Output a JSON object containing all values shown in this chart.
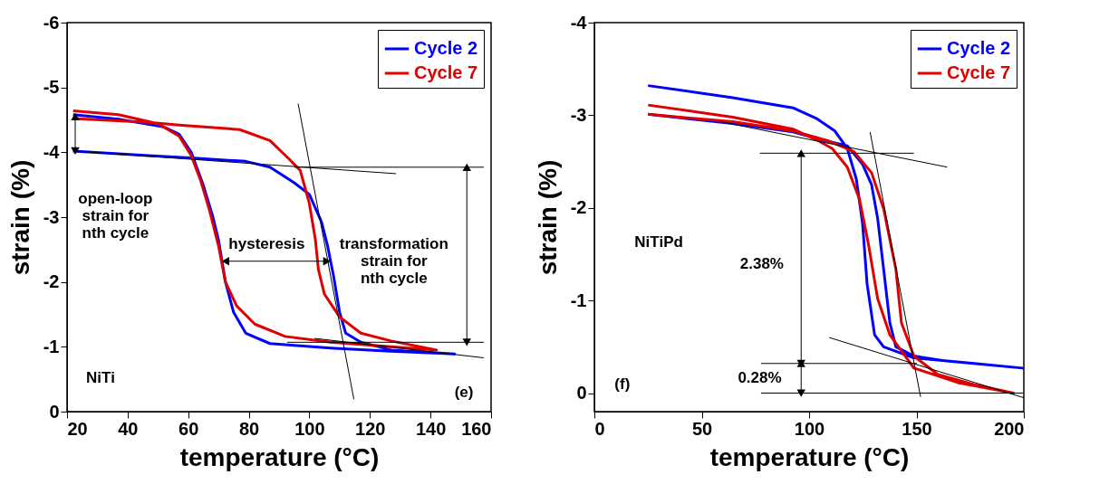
{
  "chart_data": [
    {
      "type": "line",
      "xlabel": "temperature (°C)",
      "ylabel": "strain (%)",
      "xlim": [
        20,
        160
      ],
      "xticks": [
        20,
        40,
        60,
        80,
        100,
        120,
        140,
        160
      ],
      "ylim": [
        0,
        -6
      ],
      "yticks": [
        0,
        -1,
        -2,
        -3,
        -4,
        -5,
        -6
      ],
      "grid": false,
      "legend": "top right",
      "annotations": [
        "open-loop\nstrain for\nnth cycle",
        "hysteresis",
        "transformation\nstrain for\nnth cycle",
        "NiTi",
        "(e)"
      ],
      "series": [
        {
          "name": "Cycle 2",
          "color": "#0000ff",
          "x": [
            22,
            37,
            52,
            57,
            61,
            65,
            68,
            70,
            72.3,
            75,
            79,
            87,
            107,
            127,
            148,
            127,
            117,
            112,
            110,
            108,
            106,
            104,
            100,
            95,
            87,
            79,
            62,
            47,
            22
          ],
          "values": [
            -4.58,
            -4.51,
            -4.39,
            -4.28,
            -4.0,
            -3.49,
            -3.03,
            -2.65,
            -2.0,
            -1.53,
            -1.21,
            -1.05,
            -0.98,
            -0.93,
            -0.89,
            -0.95,
            -1.07,
            -1.21,
            -1.53,
            -2.09,
            -2.56,
            -2.93,
            -3.35,
            -3.53,
            -3.77,
            -3.86,
            -3.91,
            -3.95,
            -4.02
          ]
        },
        {
          "name": "Cycle 7",
          "color": "#e00000",
          "x": [
            22,
            37,
            50,
            57,
            61,
            64,
            67,
            70,
            72.3,
            76,
            82,
            92,
            107,
            127,
            142,
            127,
            117,
            110,
            105,
            103,
            102,
            100,
            97,
            93,
            87,
            77,
            57,
            47,
            22
          ],
          "values": [
            -4.64,
            -4.58,
            -4.44,
            -4.25,
            -3.95,
            -3.58,
            -3.11,
            -2.56,
            -2.0,
            -1.63,
            -1.35,
            -1.16,
            -1.07,
            -1.0,
            -0.95,
            -1.09,
            -1.21,
            -1.46,
            -1.81,
            -2.19,
            -2.65,
            -3.21,
            -3.72,
            -3.91,
            -4.18,
            -4.35,
            -4.42,
            -4.46,
            -4.52
          ]
        },
        {
          "type": "line",
          "color": "#000000",
          "x": [
            22,
            128.6
          ],
          "values": [
            -4.02,
            -3.67
          ]
        },
        {
          "type": "line",
          "color": "#000000",
          "x": [
            95,
            157.6
          ],
          "values": [
            -3.77,
            -3.77
          ]
        },
        {
          "type": "line",
          "color": "#000000",
          "x": [
            92.7,
            157.6
          ],
          "values": [
            -1.07,
            -1.07
          ]
        },
        {
          "type": "line",
          "color": "#000000",
          "x": [
            101.7,
            157.6
          ],
          "values": [
            -1.13,
            -0.83
          ]
        },
        {
          "type": "line",
          "color": "#000000",
          "x": [
            96.3,
            114.7
          ],
          "values": [
            -4.75,
            -0.19
          ]
        },
        {
          "type": "line",
          "color": "#000000",
          "marker": "triangle",
          "x": [
            22.7,
            22.7
          ],
          "values": [
            -4.55,
            -4.02
          ]
        },
        {
          "type": "line",
          "color": "#000000",
          "marker": "triangle",
          "x": [
            72.3,
            105.8
          ],
          "values": [
            -2.32,
            -2.32
          ]
        },
        {
          "type": "line",
          "color": "#000000",
          "marker": "triangle",
          "x": [
            152,
            152
          ],
          "values": [
            -3.77,
            -1.07
          ]
        }
      ]
    },
    {
      "type": "line",
      "xlabel": "temperature (°C)",
      "ylabel": "strain (%)",
      "xlim": [
        0,
        200
      ],
      "xticks": [
        0,
        50,
        100,
        150,
        200
      ],
      "ylim": [
        0.2,
        -4
      ],
      "yticks": [
        0,
        -1,
        -2,
        -3,
        -4
      ],
      "grid": false,
      "legend": "top right",
      "annotations": [
        "NiTiPd",
        "2.38%",
        "0.28%",
        "(f)"
      ],
      "series": [
        {
          "name": "Cycle 2",
          "color": "#0000ff",
          "x": [
            25,
            64.4,
            92.5,
            103.8,
            112,
            117.8,
            122,
            124.9,
            127,
            130.5,
            134.7,
            148.8,
            176.9,
            199.4,
            162.9,
            148.8,
            140.4,
            137.6,
            134.7,
            131.9,
            129.1,
            124.9,
            117.8,
            106.6,
            92.5,
            64.4,
            25
          ],
          "values": [
            -3.32,
            -3.19,
            -3.08,
            -2.96,
            -2.83,
            -2.64,
            -2.31,
            -1.83,
            -1.18,
            -0.63,
            -0.5,
            -0.38,
            -0.32,
            -0.27,
            -0.35,
            -0.4,
            -0.5,
            -0.76,
            -1.34,
            -1.89,
            -2.25,
            -2.47,
            -2.67,
            -2.73,
            -2.82,
            -2.91,
            -3.01
          ]
        },
        {
          "name": "Cycle 7",
          "color": "#e00000",
          "x": [
            25,
            64.4,
            92.5,
            103.8,
            110.8,
            117.8,
            123.5,
            127.7,
            131.9,
            137.6,
            148.8,
            169.9,
            195.2,
            176.9,
            160,
            148.8,
            143,
            140.4,
            134.7,
            129.1,
            120.7,
            109.4,
            92.5,
            64.4,
            25
          ],
          "values": [
            -3.11,
            -2.98,
            -2.85,
            -2.73,
            -2.64,
            -2.44,
            -2.09,
            -1.6,
            -1.02,
            -0.63,
            -0.27,
            -0.11,
            0.0,
            -0.09,
            -0.2,
            -0.4,
            -0.76,
            -1.34,
            -1.99,
            -2.38,
            -2.61,
            -2.72,
            -2.83,
            -2.93,
            -3.01
          ]
        },
        {
          "type": "line",
          "color": "#000000",
          "x": [
            58.8,
            164.3
          ],
          "values": [
            -2.93,
            -2.44
          ]
        },
        {
          "type": "line",
          "color": "#000000",
          "x": [
            77.1,
            148.8
          ],
          "values": [
            -2.59,
            -2.59
          ]
        },
        {
          "type": "line",
          "color": "#000000",
          "x": [
            109.4,
            200
          ],
          "values": [
            -0.6,
            0.05
          ]
        },
        {
          "type": "line",
          "color": "#000000",
          "x": [
            77.6,
            150.2
          ],
          "values": [
            -0.32,
            -0.32
          ]
        },
        {
          "type": "line",
          "color": "#000000",
          "x": [
            77.6,
            200
          ],
          "values": [
            0,
            0
          ]
        },
        {
          "type": "line",
          "color": "#000000",
          "x": [
            128.4,
            151.9
          ],
          "values": [
            -2.82,
            0.04
          ]
        },
        {
          "type": "line",
          "color": "#000000",
          "marker": "triangle",
          "x": [
            96.3,
            96.3
          ],
          "values": [
            -2.59,
            -0.32
          ]
        },
        {
          "type": "line",
          "color": "#000000",
          "marker": "triangle",
          "x": [
            96.3,
            96.3
          ],
          "values": [
            -0.32,
            0
          ]
        }
      ]
    }
  ]
}
